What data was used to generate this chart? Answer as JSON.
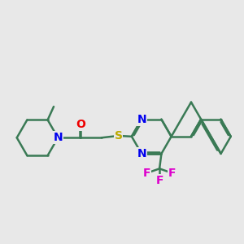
{
  "background_color": "#e8e8e8",
  "bond_color": "#3a7a55",
  "bond_width": 1.8,
  "dbo": 0.055,
  "atom_colors": {
    "N": "#0000ee",
    "O": "#ee0000",
    "S": "#bbaa00",
    "F": "#dd00cc",
    "C": "#3a7a55"
  },
  "font_size_atom": 10
}
